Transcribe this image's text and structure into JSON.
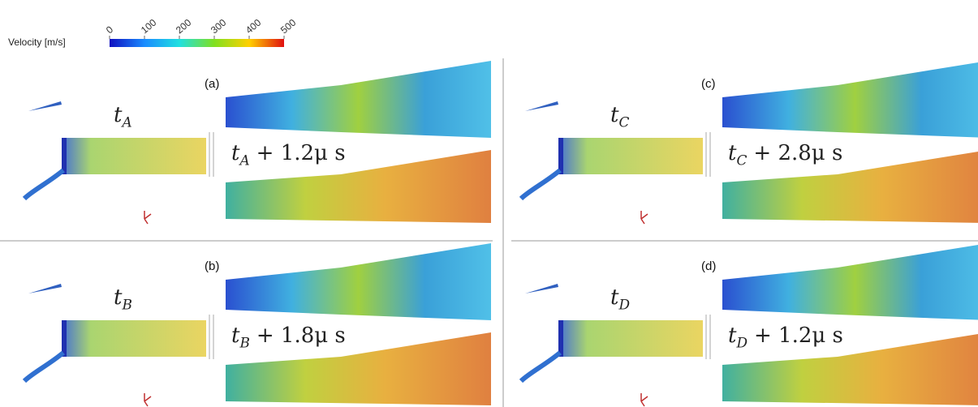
{
  "colorbar": {
    "label": "Velocity [m/s]",
    "lim": [
      0,
      500
    ],
    "ticks": [
      0,
      100,
      200,
      300,
      400,
      500
    ]
  },
  "panels": [
    {
      "label": "(a)",
      "time": {
        "t": "t",
        "sub": "A"
      },
      "later": {
        "t": "t",
        "sub": "A",
        "rest": "+ 1.2μ s"
      }
    },
    {
      "label": "(b)",
      "time": {
        "t": "t",
        "sub": "B"
      },
      "later": {
        "t": "t",
        "sub": "B",
        "rest": "+ 1.8μ s"
      }
    },
    {
      "label": "(c)",
      "time": {
        "t": "t",
        "sub": "C"
      },
      "later": {
        "t": "t",
        "sub": "C",
        "rest": "+ 2.8μ s"
      }
    },
    {
      "label": "(d)",
      "time": {
        "t": "t",
        "sub": "D"
      },
      "later": {
        "t": "t",
        "sub": "D",
        "rest": "+ 1.2μ s"
      }
    }
  ]
}
